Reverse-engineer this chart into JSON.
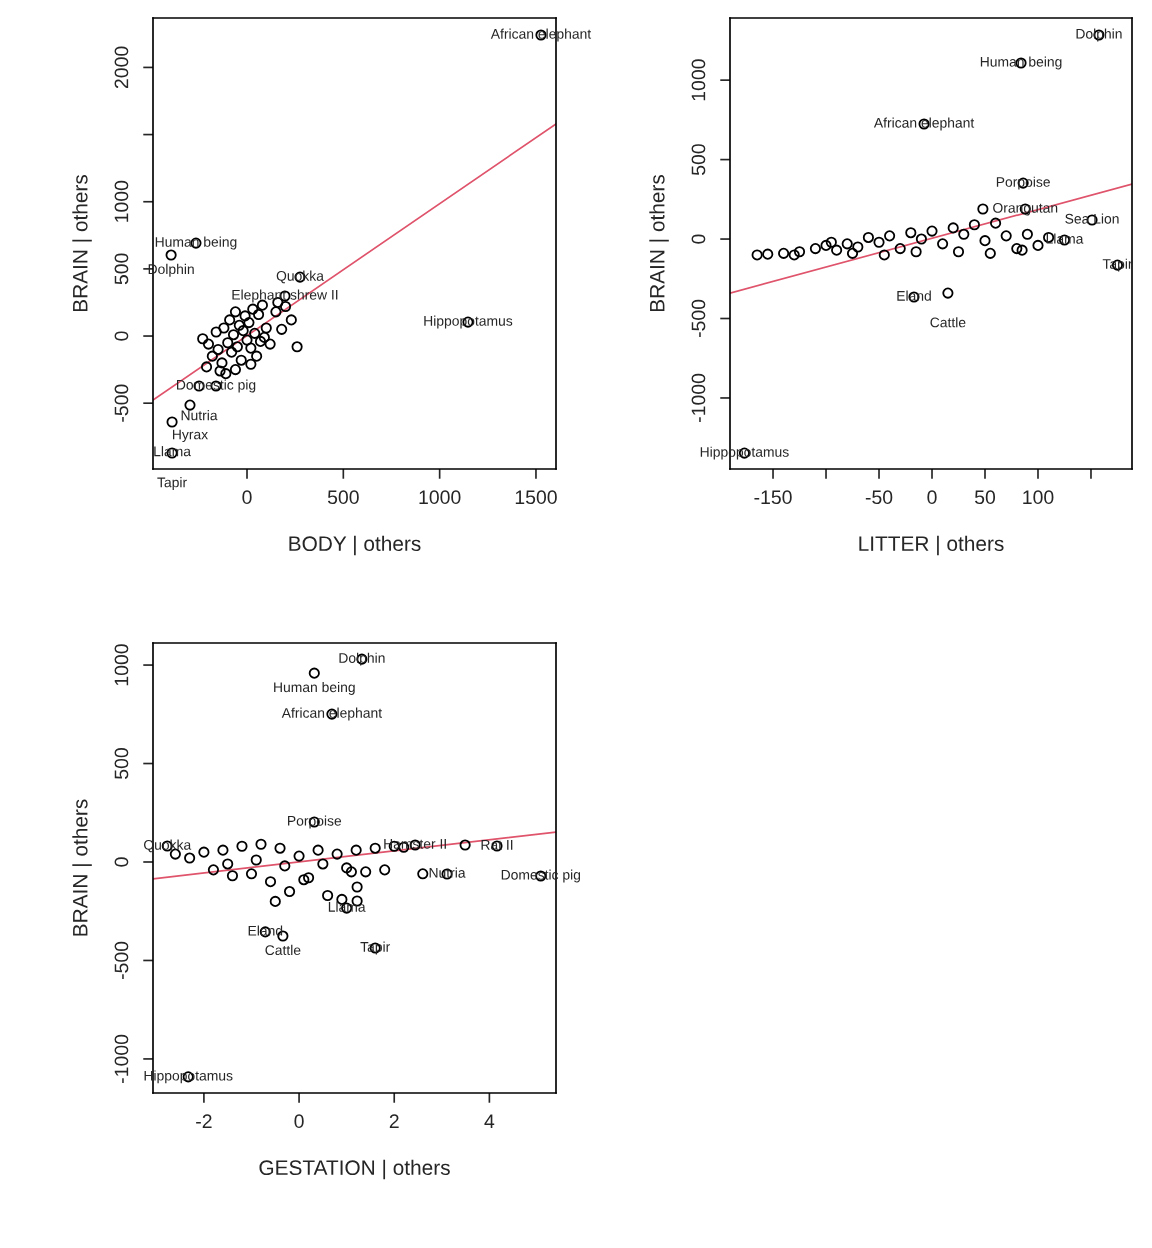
{
  "chart_data": [
    {
      "type": "scatter",
      "xlabel": "BODY | others",
      "ylabel": "BRAIN | others",
      "xlim": [
        -488,
        1604
      ],
      "ylim": [
        -990,
        2368
      ],
      "xticks": [
        0,
        500,
        1000,
        1500
      ],
      "yticks": [
        -500,
        0,
        500,
        1000,
        {
          "value": 1500,
          "label": null
        },
        2000
      ],
      "grid": false,
      "series": [
        {
          "marker": "circle",
          "color": "#000000",
          "x": [
            1526,
            -265,
            -394,
            275,
            197,
            1147,
            -161,
            -249,
            -296,
            -389,
            -389,
            -230,
            -200,
            -180,
            -160,
            -150,
            -130,
            -120,
            -100,
            -90,
            -80,
            -70,
            -60,
            -50,
            -40,
            -30,
            -20,
            -10,
            0,
            10,
            20,
            30,
            40,
            50,
            60,
            70,
            80,
            100,
            120,
            150,
            180,
            200,
            230,
            260,
            -210,
            -140,
            -60,
            20,
            90,
            160,
            -110
          ],
          "values": [
            2241,
            692,
            603,
            439,
            298,
            104,
            -372,
            -372,
            -514,
            -640,
            -871,
            -20,
            -60,
            -150,
            30,
            -100,
            -200,
            60,
            -50,
            120,
            -120,
            10,
            180,
            -80,
            80,
            -180,
            40,
            150,
            -30,
            100,
            -90,
            200,
            20,
            -150,
            160,
            -40,
            230,
            60,
            -60,
            180,
            50,
            220,
            120,
            -80,
            -230,
            -260,
            -250,
            -210,
            -10,
            250,
            -280
          ]
        },
        {
          "type": "line",
          "color": "#df536b",
          "x": [
            -488,
            1604
          ],
          "values": [
            -477,
            1579
          ]
        }
      ],
      "annotations": [
        {
          "text": "African elephant",
          "x": 1526,
          "y": 2241
        },
        {
          "text": "Human being",
          "x": -265,
          "y": 692
        },
        {
          "text": "Dolphin",
          "x": -394,
          "y": 603
        },
        {
          "text": "Quokka",
          "x": 275,
          "y": 439
        },
        {
          "text": "Elephant shrew II",
          "x": 197,
          "y": 298
        },
        {
          "text": "Hippopotamus",
          "x": 1147,
          "y": 104
        },
        {
          "text": "Domestic pig",
          "x": -161,
          "y": -372
        },
        {
          "text": "Nutria",
          "x": -249,
          "y": -372
        },
        {
          "text": "Hyrax",
          "x": -296,
          "y": -514
        },
        {
          "text": "Llama",
          "x": -389,
          "y": -640
        },
        {
          "text": "Tapir",
          "x": -389,
          "y": -871
        }
      ]
    },
    {
      "type": "scatter",
      "xlabel": "LITTER | others",
      "ylabel": "BRAIN | others",
      "xlim": [
        -190.6,
        188.7
      ],
      "ylim": [
        -1447,
        1391
      ],
      "xticks": [
        -150,
        {
          "value": -100,
          "label": null
        },
        -50,
        0,
        50,
        100,
        {
          "value": 150,
          "label": null
        }
      ],
      "yticks": [
        -1000,
        -500,
        0,
        500,
        1000
      ],
      "grid": false,
      "series": [
        {
          "marker": "circle",
          "color": "#000000",
          "x": [
            157.5,
            84,
            -7.5,
            86,
            151,
            175,
            -17,
            15,
            -177,
            125,
            48,
            88,
            -165,
            -155,
            -140,
            -125,
            -110,
            -100,
            -90,
            -80,
            -70,
            -60,
            -50,
            -40,
            -30,
            -20,
            -10,
            0,
            10,
            20,
            30,
            40,
            50,
            60,
            70,
            80,
            90,
            100,
            110,
            -130,
            -75,
            -45,
            -15,
            25,
            55,
            85,
            -95
          ],
          "values": [
            1284,
            1108,
            724,
            352,
            120,
            -164,
            -365,
            -340,
            -1347,
            -6,
            189,
            189,
            -100,
            -95,
            -90,
            -80,
            -60,
            -40,
            -70,
            -30,
            -50,
            10,
            -20,
            20,
            -60,
            40,
            0,
            50,
            -30,
            70,
            30,
            90,
            -10,
            100,
            20,
            -60,
            30,
            -40,
            10,
            -100,
            -90,
            -100,
            -80,
            -80,
            -90,
            -70,
            -20
          ]
        },
        {
          "type": "line",
          "color": "#df536b",
          "x": [
            -190.6,
            188.7
          ],
          "values": [
            -340,
            346
          ]
        }
      ],
      "annotations": [
        {
          "text": "Dolphin",
          "x": 157.5,
          "y": 1284
        },
        {
          "text": "Human being",
          "x": 84,
          "y": 1108
        },
        {
          "text": "African elephant",
          "x": -7.5,
          "y": 724
        },
        {
          "text": "Porpoise",
          "x": 86,
          "y": 352
        },
        {
          "text": "Sea Lion",
          "x": 151,
          "y": 120
        },
        {
          "text": "Tapir",
          "x": 175,
          "y": -164
        },
        {
          "text": "Eland",
          "x": -17,
          "y": -365
        },
        {
          "text": "Cattle",
          "x": 15,
          "y": -340
        },
        {
          "text": "Hippopotamus",
          "x": -177,
          "y": -1347
        },
        {
          "text": "Llama",
          "x": 125,
          "y": -6
        },
        {
          "text": "Orangutan",
          "x": 88,
          "y": 189
        }
      ]
    },
    {
      "type": "scatter",
      "xlabel": "GESTATION | others",
      "ylabel": "BRAIN | others",
      "xlim": [
        -3.07,
        5.4
      ],
      "ylim": [
        -1173,
        1112
      ],
      "xticks": [
        -2,
        0,
        2,
        4
      ],
      "yticks": [
        -1000,
        -500,
        0,
        500,
        1000
      ],
      "grid": false,
      "series": [
        {
          "marker": "circle",
          "color": "#000000",
          "x": [
            1.32,
            0.32,
            0.69,
            0.32,
            -2.33,
            -0.71,
            -0.34,
            1.6,
            5.08,
            3.11,
            3.49,
            4.16,
            1.0,
            -2.77,
            2.44,
            1.22,
            1.22,
            -2.6,
            -2.3,
            -2.0,
            -1.8,
            -1.6,
            -1.4,
            -1.2,
            -1.0,
            -0.8,
            -0.6,
            -0.4,
            -0.2,
            0,
            0.2,
            0.4,
            0.6,
            0.8,
            1.0,
            1.2,
            1.4,
            1.6,
            1.8,
            2.0,
            2.2,
            -1.5,
            -0.9,
            -0.3,
            0.5,
            1.1,
            -0.5,
            0.1,
            0.9,
            2.6
          ],
          "values": [
            1030,
            959,
            751,
            203,
            -1091,
            -355,
            -376,
            -437,
            -71,
            -61,
            86,
            81,
            -234,
            81,
            86,
            -127,
            -198,
            40,
            20,
            50,
            -40,
            60,
            -70,
            80,
            -60,
            90,
            -100,
            70,
            -150,
            30,
            -80,
            60,
            -170,
            40,
            -30,
            60,
            -50,
            70,
            -40,
            80,
            75,
            -10,
            10,
            -20,
            -10,
            -50,
            -200,
            -90,
            -190,
            -60
          ]
        },
        {
          "type": "line",
          "color": "#df536b",
          "x": [
            -3.07,
            5.4
          ],
          "values": [
            -86,
            152
          ]
        }
      ],
      "annotations": [
        {
          "text": "Dolphin",
          "x": 1.32,
          "y": 1030
        },
        {
          "text": "Human being",
          "x": 0.32,
          "y": 959
        },
        {
          "text": "African elephant",
          "x": 0.69,
          "y": 751
        },
        {
          "text": "Porpoise",
          "x": 0.32,
          "y": 203
        },
        {
          "text": "Hippopotamus",
          "x": -2.33,
          "y": -1091
        },
        {
          "text": "Eland",
          "x": -0.71,
          "y": -355
        },
        {
          "text": "Cattle",
          "x": -0.34,
          "y": -376
        },
        {
          "text": "Tapir",
          "x": 1.6,
          "y": -437
        },
        {
          "text": "Domestic pig",
          "x": 5.08,
          "y": -71
        },
        {
          "text": "Nutria",
          "x": 3.11,
          "y": -61
        },
        {
          "text": "Rat II",
          "x": 4.16,
          "y": 81
        },
        {
          "text": "Llama",
          "x": 1.0,
          "y": -234
        },
        {
          "text": "Quokka",
          "x": -2.77,
          "y": 81
        },
        {
          "text": "Hamster II",
          "x": 2.44,
          "y": 86
        }
      ]
    }
  ]
}
